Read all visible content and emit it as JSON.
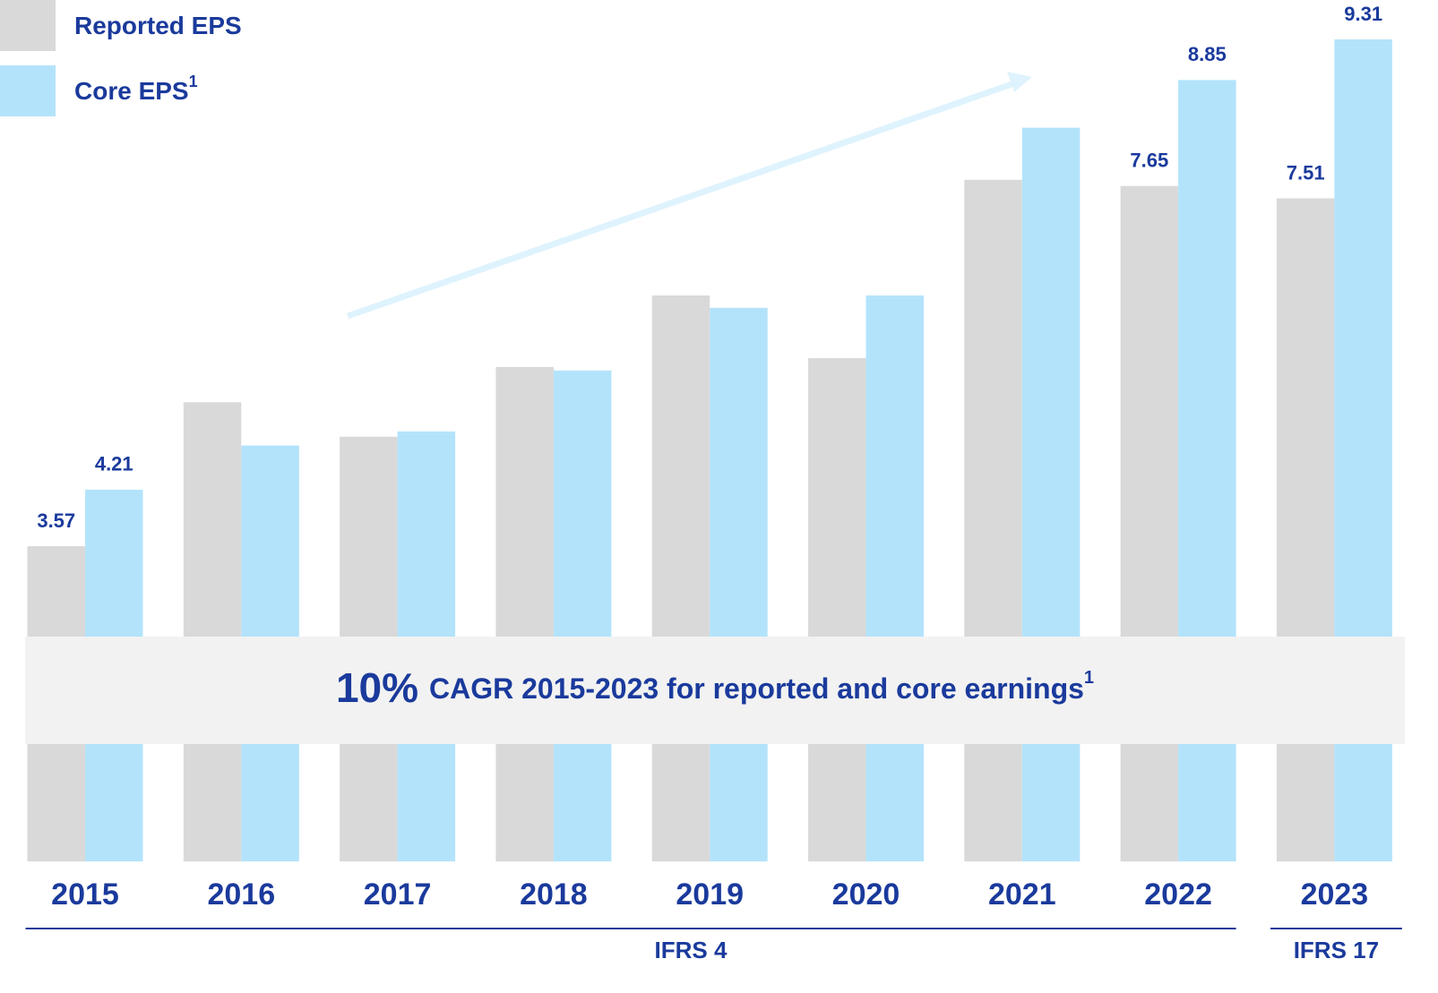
{
  "chart_data": {
    "type": "bar",
    "categories": [
      "2015",
      "2016",
      "2017",
      "2018",
      "2019",
      "2020",
      "2021",
      "2022",
      "2023"
    ],
    "series": [
      {
        "name": "Reported EPS",
        "color": "#d9d9d9",
        "values": [
          3.57,
          5.2,
          4.81,
          5.6,
          6.41,
          5.7,
          7.72,
          7.65,
          7.51
        ],
        "value_labels": [
          "3.57",
          null,
          null,
          null,
          null,
          null,
          null,
          "7.65",
          "7.51"
        ]
      },
      {
        "name": "Core EPS",
        "name_note": "1",
        "color": "#b3e3fb",
        "values": [
          4.21,
          4.71,
          4.87,
          5.56,
          6.27,
          6.41,
          8.31,
          8.85,
          9.31
        ],
        "value_labels": [
          "4.21",
          null,
          null,
          null,
          null,
          null,
          null,
          "8.85",
          "9.31"
        ]
      }
    ],
    "ylim": [
      0,
      10
    ],
    "banner": {
      "highlight": "10%",
      "text": "CAGR 2015-2023 for reported and core earnings",
      "note": "1"
    },
    "groups": [
      {
        "label": "IFRS 4"
      },
      {
        "label": "IFRS 17"
      }
    ]
  }
}
